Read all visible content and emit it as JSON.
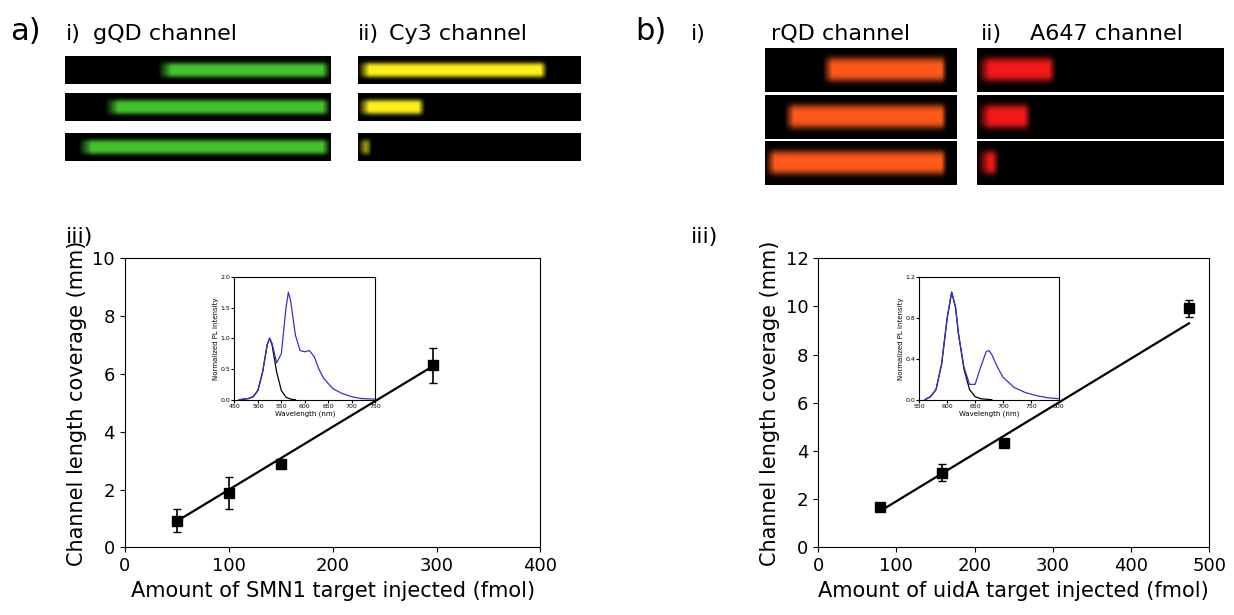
{
  "panels": [
    {
      "label": "a)",
      "plot_label": "iii)",
      "images": [
        {
          "prefix": "i)",
          "title": "gQD channel"
        },
        {
          "prefix": "ii)",
          "title": "Cy3 channel"
        }
      ]
    },
    {
      "label": "b)",
      "plot_label": "iii)",
      "images": [
        {
          "prefix": "i)",
          "title": "rQD channel"
        },
        {
          "prefix": "ii)",
          "title": "A647 channel"
        }
      ]
    }
  ],
  "chart_data": [
    {
      "type": "scatter",
      "xlabel": "Amount of SMN1 target injected (fmol)",
      "ylabel": "Channel length coverage (mm)",
      "xlim": [
        0,
        400
      ],
      "xticks": [
        0,
        100,
        200,
        300,
        400
      ],
      "ylim": [
        0,
        10
      ],
      "yticks": [
        0,
        2,
        4,
        6,
        8,
        10
      ],
      "series": [
        {
          "type": "scatter",
          "x": [
            50,
            100,
            150,
            297
          ],
          "values": [
            0.92,
            1.88,
            2.9,
            6.3
          ],
          "errors": [
            0.4,
            0.55,
            0.12,
            0.6
          ],
          "marker": "square",
          "color": "#000000"
        },
        {
          "type": "line",
          "x": [
            50,
            297
          ],
          "values": [
            0.9,
            6.28
          ],
          "color": "#000000",
          "line_style": "solid"
        }
      ]
    },
    {
      "type": "scatter",
      "xlabel": "Amount of uidA target injected (fmol)",
      "ylabel": "Channel length coverage (mm)",
      "xlim": [
        0,
        500
      ],
      "xticks": [
        0,
        100,
        200,
        300,
        400,
        500
      ],
      "ylim": [
        0,
        12
      ],
      "yticks": [
        0,
        2,
        4,
        6,
        8,
        10,
        12
      ],
      "series": [
        {
          "type": "scatter",
          "x": [
            79,
            158,
            237,
            474
          ],
          "values": [
            1.68,
            3.1,
            4.35,
            9.93
          ],
          "errors": [
            0.15,
            0.35,
            0.12,
            0.35
          ],
          "marker": "square",
          "color": "#000000"
        },
        {
          "type": "line",
          "x": [
            79,
            474
          ],
          "values": [
            1.5,
            9.3
          ],
          "color": "#000000",
          "line_style": "solid"
        }
      ]
    },
    {
      "type": "line",
      "xlabel": "Wavelength (nm)",
      "ylabel": "Normalized PL intensity",
      "xlim": [
        450,
        750
      ],
      "xticks": [
        450,
        500,
        550,
        600,
        650,
        700,
        750
      ],
      "ylim": [
        0,
        2
      ],
      "yticks": [
        {
          "value": 0,
          "label": "0.0"
        },
        0.5,
        {
          "value": 1,
          "label": "1.0"
        },
        1.5,
        {
          "value": 2,
          "label": "2.0"
        }
      ],
      "series": [
        {
          "type": "line",
          "color": "#000000",
          "line_style": "solid",
          "x": [
            460,
            480,
            490,
            500,
            510,
            520,
            525,
            530,
            540,
            550,
            560,
            570,
            580
          ],
          "values": [
            0,
            0.02,
            0.05,
            0.15,
            0.45,
            0.9,
            1.0,
            0.9,
            0.45,
            0.15,
            0.04,
            0.01,
            0
          ]
        },
        {
          "type": "line",
          "color": "#3333cc",
          "line_style": "solid",
          "x": [
            460,
            480,
            490,
            500,
            510,
            520,
            525,
            530,
            540,
            550,
            560,
            565,
            570,
            580,
            590,
            600,
            610,
            620,
            630,
            640,
            660,
            680,
            700,
            720,
            750
          ],
          "values": [
            0,
            0.02,
            0.05,
            0.15,
            0.45,
            0.9,
            1.0,
            0.92,
            0.6,
            0.75,
            1.5,
            1.75,
            1.6,
            1.05,
            0.8,
            0.78,
            0.8,
            0.7,
            0.5,
            0.35,
            0.18,
            0.1,
            0.05,
            0.02,
            0.01
          ]
        }
      ]
    },
    {
      "type": "line",
      "xlabel": "Wavelength (nm)",
      "ylabel": "Normalized PL intensity",
      "xlim": [
        550,
        800
      ],
      "xticks": [
        550,
        600,
        650,
        700,
        750,
        800
      ],
      "ylim": [
        0,
        1.2
      ],
      "yticks": [
        {
          "value": 0,
          "label": "0.0"
        },
        0.4,
        0.8,
        1.2
      ],
      "series": [
        {
          "type": "line",
          "color": "#000000",
          "line_style": "solid",
          "x": [
            560,
            570,
            580,
            590,
            600,
            608,
            615,
            620,
            630,
            640,
            650,
            660,
            680
          ],
          "values": [
            0,
            0.03,
            0.1,
            0.35,
            0.8,
            1.05,
            0.9,
            0.65,
            0.3,
            0.1,
            0.03,
            0.01,
            0
          ]
        },
        {
          "type": "line",
          "color": "#3333cc",
          "line_style": "solid",
          "x": [
            560,
            570,
            580,
            590,
            600,
            608,
            615,
            620,
            630,
            640,
            650,
            660,
            670,
            675,
            680,
            690,
            700,
            720,
            740,
            760,
            780,
            800
          ],
          "values": [
            0,
            0.03,
            0.1,
            0.35,
            0.8,
            1.05,
            0.9,
            0.65,
            0.32,
            0.15,
            0.15,
            0.32,
            0.47,
            0.48,
            0.44,
            0.32,
            0.22,
            0.12,
            0.07,
            0.04,
            0.02,
            0.01
          ]
        }
      ]
    }
  ]
}
